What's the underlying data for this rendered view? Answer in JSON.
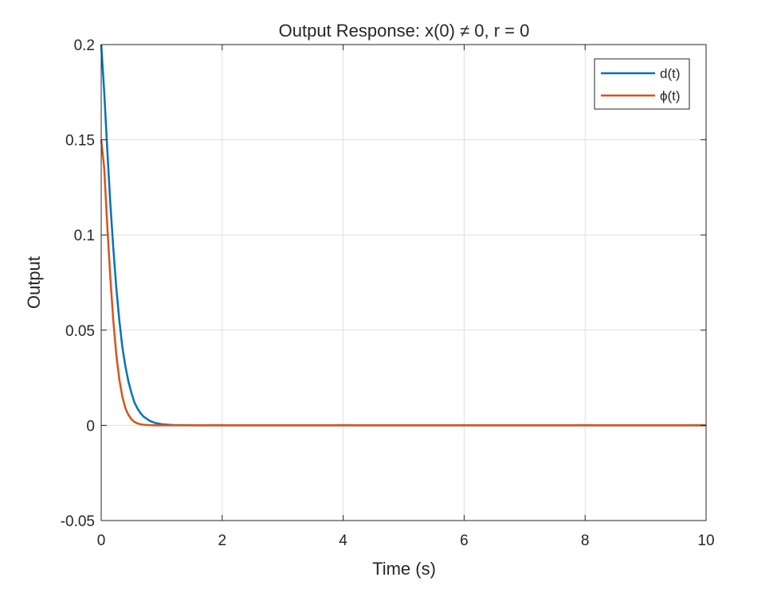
{
  "chart_data": {
    "type": "line",
    "title": "Output Response: x(0) ≠ 0, r = 0",
    "xlabel": "Time (s)",
    "ylabel": "Output",
    "xlim": [
      0,
      10
    ],
    "ylim": [
      -0.05,
      0.2
    ],
    "xticks": [
      0,
      2,
      4,
      6,
      8,
      10
    ],
    "xtick_labels": [
      "0",
      "2",
      "4",
      "6",
      "8",
      "10"
    ],
    "yticks": [
      -0.05,
      0,
      0.05,
      0.1,
      0.15,
      0.2
    ],
    "ytick_labels": [
      "-0.05",
      "0",
      "0.05",
      "0.1",
      "0.15",
      "0.2"
    ],
    "grid": true,
    "legend_position": "top-right",
    "series": [
      {
        "name": "d(t)",
        "color": "#0072BD",
        "x": [
          0,
          0.05,
          0.1,
          0.15,
          0.2,
          0.25,
          0.3,
          0.35,
          0.4,
          0.45,
          0.5,
          0.55,
          0.6,
          0.65,
          0.7,
          0.8,
          0.9,
          1.0,
          1.1,
          1.2,
          1.4,
          1.6,
          2.0,
          3.0,
          4.0,
          5.0,
          6.0,
          7.0,
          8.0,
          9.0,
          10.0
        ],
        "y": [
          0.2,
          0.175,
          0.145,
          0.117,
          0.093,
          0.072,
          0.055,
          0.041,
          0.031,
          0.023,
          0.017,
          0.012,
          0.0088,
          0.0064,
          0.0046,
          0.0024,
          0.0012,
          0.0006,
          0.0003,
          0.00015,
          4e-05,
          1e-05,
          0,
          0,
          0,
          0,
          0,
          0,
          0,
          0,
          0
        ]
      },
      {
        "name": "ϕ(t)",
        "color": "#D95319",
        "x": [
          0,
          0.05,
          0.1,
          0.15,
          0.2,
          0.25,
          0.3,
          0.35,
          0.4,
          0.45,
          0.5,
          0.55,
          0.6,
          0.65,
          0.7,
          0.8,
          0.9,
          1.0,
          1.2,
          1.5,
          2.0,
          3.0,
          4.0,
          5.0,
          6.0,
          7.0,
          8.0,
          9.0,
          10.0
        ],
        "y": [
          0.15,
          0.135,
          0.105,
          0.078,
          0.055,
          0.037,
          0.024,
          0.015,
          0.009,
          0.0055,
          0.0032,
          0.0018,
          0.001,
          0.0006,
          0.0003,
          0.0001,
          3e-05,
          1e-05,
          0,
          0,
          0,
          0,
          0,
          0,
          0,
          0,
          0,
          0,
          0
        ]
      }
    ]
  }
}
